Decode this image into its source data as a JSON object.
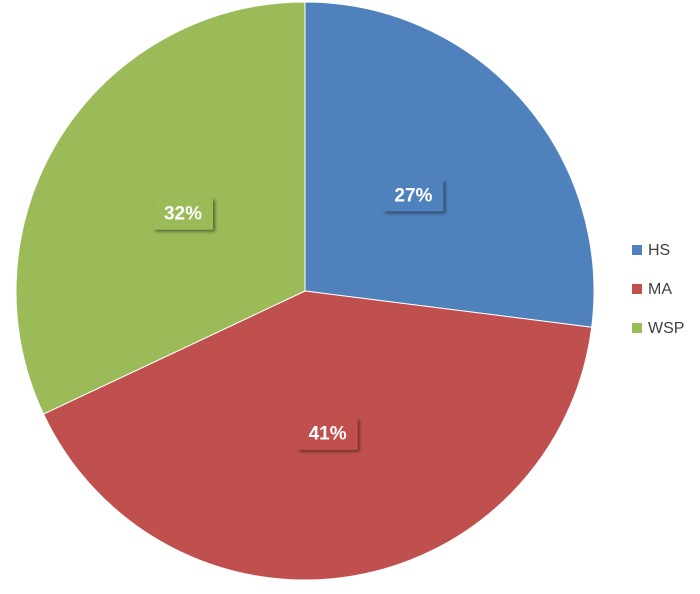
{
  "chart_data": {
    "type": "pie",
    "categories": [
      "HS",
      "MA",
      "WSP"
    ],
    "values": [
      27,
      41,
      32
    ],
    "value_labels": [
      "27%",
      "41%",
      "32%"
    ],
    "colors": [
      "#4f81bd",
      "#c0504d",
      "#9bbb59"
    ],
    "legend": "right"
  }
}
